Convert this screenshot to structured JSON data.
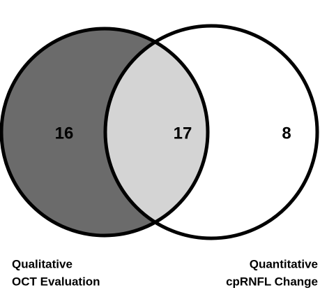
{
  "chart_data": {
    "type": "venn",
    "sets": [
      {
        "label_lines": [
          "Qualitative",
          "OCT Evaluation"
        ],
        "color": "#6b6b6b",
        "value": 16
      },
      {
        "label_lines": [
          "Quantitative",
          "cpRNFL Change"
        ],
        "color": "#ffffff",
        "value": 8
      }
    ],
    "intersection": {
      "color": "#d4d4d4",
      "value": 17
    }
  }
}
